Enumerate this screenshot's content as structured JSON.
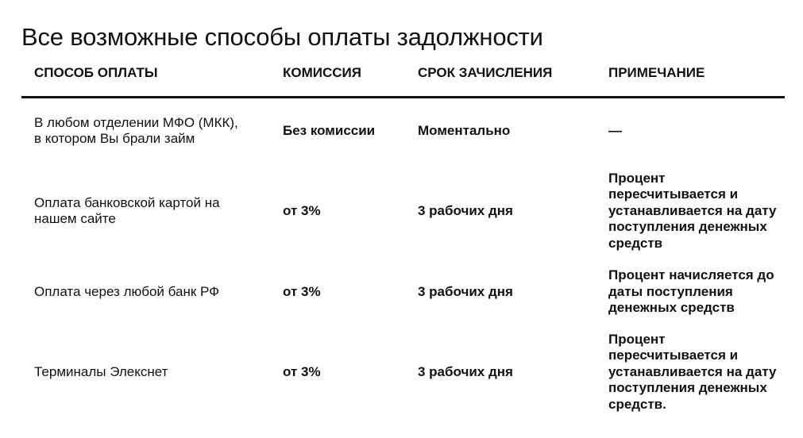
{
  "title": "Все возможные способы оплаты задолжности",
  "table": {
    "headers": [
      "Способ оплаты",
      "Комиссия",
      "Срок зачисления",
      "Примечание"
    ],
    "rows": [
      {
        "method": "В любом отделении МФО (МКК), в котором Вы брали займ",
        "fee": "Без комиссии",
        "term": "Моментально",
        "note": "—"
      },
      {
        "method": "Оплата банковской картой на нашем сайте",
        "fee": "от 3%",
        "term": "3 рабочих дня",
        "note": "Процент пересчитывается и устанавливается на дату поступления денежных средств"
      },
      {
        "method": "Оплата через любой банк РФ",
        "fee": "от 3%",
        "term": "3 рабочих дня",
        "note": "Процент начисляется до даты поступления денежных средств"
      },
      {
        "method": "Терминалы Элекснет",
        "fee": "от 3%",
        "term": "3 рабочих дня",
        "note": "Процент пересчитывается и устанавливается на дату поступления денежных средств."
      }
    ]
  }
}
